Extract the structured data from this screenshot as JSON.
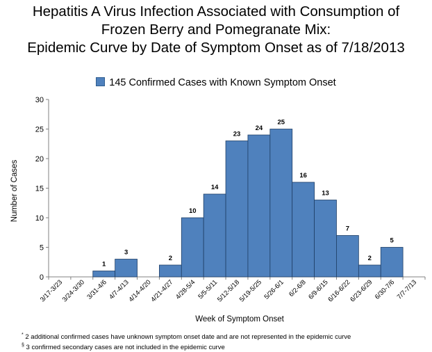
{
  "chart_data": {
    "type": "bar",
    "title": [
      "Hepatitis A Virus Infection Associated with Consumption of",
      "Frozen Berry and Pomegranate Mix:",
      "Epidemic Curve by Date of Symptom Onset  as of 7/18/2013"
    ],
    "legend_label": "145 Confirmed Cases with Known Symptom Onset",
    "legend_position": "top-center",
    "xlabel": "Week of Symptom Onset",
    "ylabel": "Number of Cases",
    "ylim": [
      0,
      30
    ],
    "yticks": [
      0,
      5,
      10,
      15,
      20,
      25,
      30
    ],
    "grid": false,
    "bar_color": "#4f81bd",
    "categories": [
      "3/17-3/23",
      "3/24-3/30",
      "3/31-4/6",
      "4/7-4/13",
      "4/14-4/20",
      "4/21-4/27",
      "4/28-5/4",
      "5/5-5/11",
      "5/12-5/18",
      "5/19-5/25",
      "5/26-6/1",
      "6/2-6/8",
      "6/9-6/15",
      "6/16-6/22",
      "6/23-6/29",
      "6/30-7/6",
      "7/7-7/13"
    ],
    "values": [
      0,
      0,
      1,
      3,
      0,
      2,
      10,
      14,
      23,
      24,
      25,
      16,
      13,
      7,
      2,
      5,
      0
    ]
  },
  "footnotes": {
    "marker1": "*",
    "note1": "2 additional confirmed cases have unknown symptom onset date and are not represented in the epidemic curve",
    "marker2": "§",
    "note2": "3 confirmed secondary cases are not included in the epidemic curve"
  }
}
